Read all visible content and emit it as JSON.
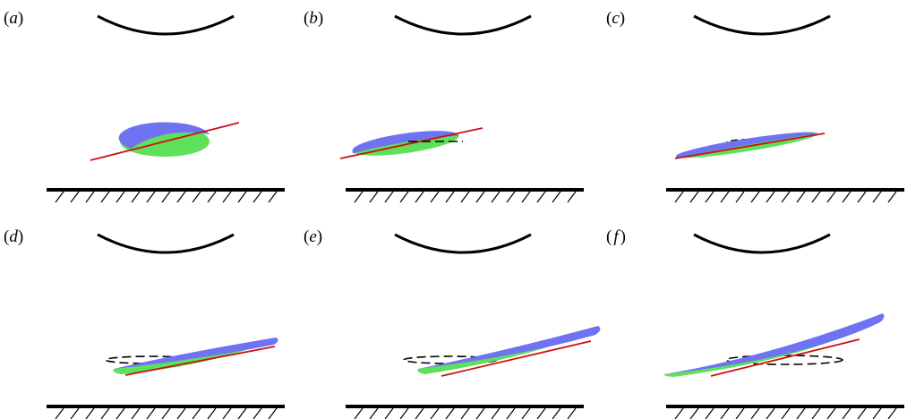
{
  "panels": [
    {
      "id": "a",
      "label_open": "(",
      "label_letter": "a",
      "label_close": ")"
    },
    {
      "id": "b",
      "label_open": "(",
      "label_letter": "b",
      "label_close": ")"
    },
    {
      "id": "c",
      "label_open": "(",
      "label_letter": "c",
      "label_close": ")"
    },
    {
      "id": "d",
      "label_open": "(",
      "label_letter": "d",
      "label_close": ")"
    },
    {
      "id": "e",
      "label_open": "(",
      "label_letter": "e",
      "label_close": ")"
    },
    {
      "id": "f",
      "label_open": "(",
      "label_letter": "f",
      "label_close": ")"
    }
  ],
  "colors": {
    "upper_surface": "#6f73f2",
    "lower_surface": "#5fe05a",
    "axis_line": "#cc1111",
    "outline": "#000000",
    "background": "#ffffff"
  }
}
